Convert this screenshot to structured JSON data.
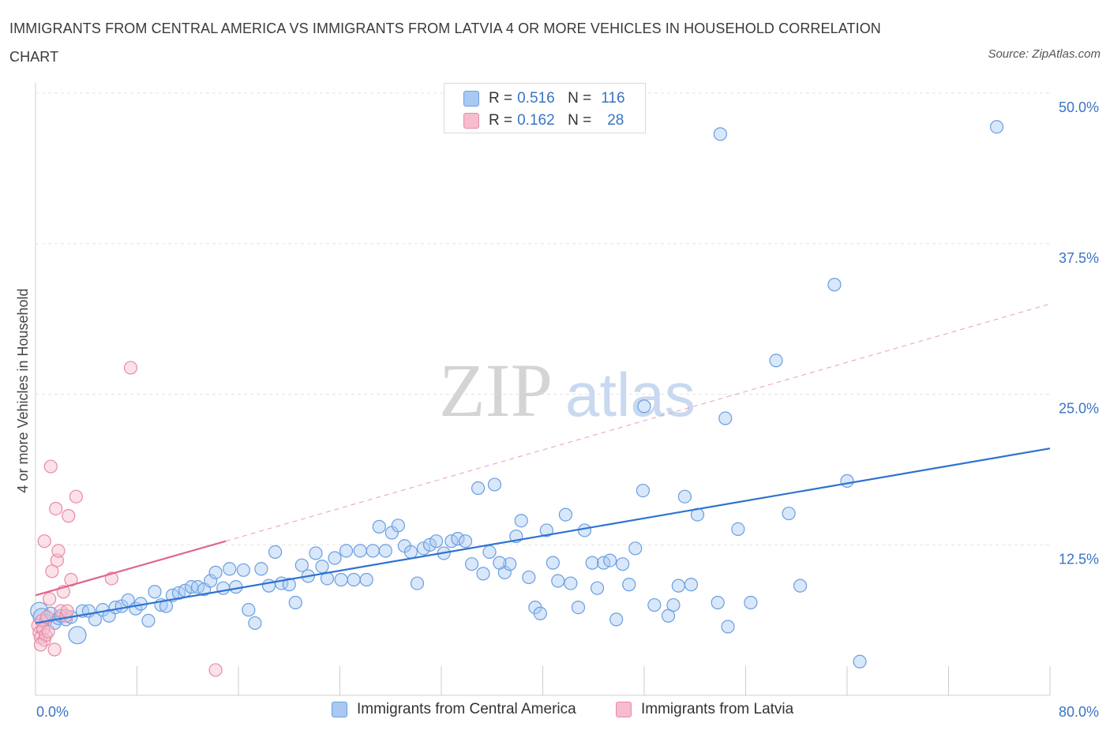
{
  "title": "IMMIGRANTS FROM CENTRAL AMERICA VS IMMIGRANTS FROM LATVIA 4 OR MORE VEHICLES IN HOUSEHOLD CORRELATION CHART",
  "source": "Source: ZipAtlas.com",
  "watermark": {
    "zip": "ZIP",
    "atlas": "atlas"
  },
  "legend": {
    "rows": [
      {
        "r_label": "R =",
        "r_value": "0.516",
        "n_label": "N =",
        "n_value": "116",
        "color": "#a9c9f2",
        "edge": "#6a9ee0"
      },
      {
        "r_label": "R =",
        "r_value": "0.162",
        "n_label": "N =",
        "n_value": "28",
        "color": "#f7bccd",
        "edge": "#e88aa6"
      }
    ]
  },
  "bottom_legend": [
    {
      "label": "Immigrants from Central America",
      "color": "#a9c9f2",
      "edge": "#6a9ee0"
    },
    {
      "label": "Immigrants from Latvia",
      "color": "#f7bccd",
      "edge": "#e88aa6"
    }
  ],
  "chart_data": {
    "type": "scatter",
    "title": "IMMIGRANTS FROM CENTRAL AMERICA VS IMMIGRANTS FROM LATVIA 4 OR MORE VEHICLES IN HOUSEHOLD CORRELATION CHART",
    "ylabel": "4 or more Vehicles in Household",
    "xlabel": "",
    "xlim": [
      0,
      80
    ],
    "ylim": [
      0,
      50
    ],
    "x_tick_labels": [
      "0.0%",
      "80.0%"
    ],
    "y_tick_labels": [
      "12.5%",
      "25.0%",
      "37.5%",
      "50.0%"
    ],
    "y_ticks": [
      12.5,
      25,
      37.5,
      50
    ],
    "grid": true,
    "legend_position": "top-center",
    "series": [
      {
        "name": "Immigrants from Central America",
        "color": "#6a9ee0",
        "fill": "#a9c9f2",
        "trend": {
          "x": [
            0,
            80
          ],
          "y": [
            6.0,
            20.5
          ],
          "style": "solid",
          "color": "#2f72d0"
        },
        "points": [
          [
            0.3,
            7.0
          ],
          [
            0.5,
            6.5
          ],
          [
            0.8,
            6.2
          ],
          [
            1.2,
            6.8
          ],
          [
            1.5,
            6.0
          ],
          [
            1.8,
            6.4
          ],
          [
            2.0,
            6.6
          ],
          [
            2.4,
            6.3
          ],
          [
            2.8,
            6.5
          ],
          [
            3.3,
            5.0
          ],
          [
            3.7,
            7.0
          ],
          [
            4.2,
            7.0
          ],
          [
            4.7,
            6.3
          ],
          [
            5.3,
            7.1
          ],
          [
            5.8,
            6.6
          ],
          [
            6.3,
            7.3
          ],
          [
            6.8,
            7.4
          ],
          [
            7.3,
            7.9
          ],
          [
            7.9,
            7.2
          ],
          [
            8.3,
            7.6
          ],
          [
            8.9,
            6.2
          ],
          [
            9.4,
            8.6
          ],
          [
            9.9,
            7.5
          ],
          [
            10.3,
            7.4
          ],
          [
            10.8,
            8.3
          ],
          [
            11.3,
            8.5
          ],
          [
            11.8,
            8.7
          ],
          [
            12.3,
            9.0
          ],
          [
            12.8,
            9.0
          ],
          [
            13.3,
            8.8
          ],
          [
            13.8,
            9.5
          ],
          [
            14.2,
            10.2
          ],
          [
            14.8,
            8.9
          ],
          [
            15.3,
            10.5
          ],
          [
            15.8,
            9.0
          ],
          [
            16.4,
            10.4
          ],
          [
            16.8,
            7.1
          ],
          [
            17.3,
            6.0
          ],
          [
            17.8,
            10.5
          ],
          [
            18.4,
            9.1
          ],
          [
            18.9,
            11.9
          ],
          [
            19.4,
            9.3
          ],
          [
            20.0,
            9.2
          ],
          [
            20.5,
            7.7
          ],
          [
            21.0,
            10.8
          ],
          [
            21.5,
            9.9
          ],
          [
            22.1,
            11.8
          ],
          [
            22.6,
            10.7
          ],
          [
            23.0,
            9.7
          ],
          [
            23.6,
            11.4
          ],
          [
            24.1,
            9.6
          ],
          [
            24.5,
            12.0
          ],
          [
            25.1,
            9.6
          ],
          [
            25.6,
            12.0
          ],
          [
            26.1,
            9.6
          ],
          [
            26.6,
            12.0
          ],
          [
            27.1,
            14.0
          ],
          [
            27.6,
            12.0
          ],
          [
            28.1,
            13.5
          ],
          [
            28.6,
            14.1
          ],
          [
            29.1,
            12.4
          ],
          [
            29.6,
            11.9
          ],
          [
            30.1,
            9.3
          ],
          [
            30.6,
            12.2
          ],
          [
            31.1,
            12.5
          ],
          [
            31.6,
            12.8
          ],
          [
            32.2,
            11.8
          ],
          [
            32.8,
            12.8
          ],
          [
            33.3,
            13.0
          ],
          [
            33.9,
            12.8
          ],
          [
            34.4,
            10.9
          ],
          [
            34.9,
            17.2
          ],
          [
            35.3,
            10.1
          ],
          [
            35.8,
            11.9
          ],
          [
            36.2,
            17.5
          ],
          [
            37.0,
            10.2
          ],
          [
            37.4,
            10.9
          ],
          [
            37.9,
            13.2
          ],
          [
            38.3,
            14.5
          ],
          [
            38.9,
            9.8
          ],
          [
            39.4,
            7.3
          ],
          [
            39.8,
            6.8
          ],
          [
            40.3,
            13.7
          ],
          [
            40.8,
            11.0
          ],
          [
            41.2,
            9.5
          ],
          [
            41.8,
            15.0
          ],
          [
            42.2,
            9.3
          ],
          [
            42.8,
            7.3
          ],
          [
            43.3,
            13.7
          ],
          [
            43.9,
            11.0
          ],
          [
            44.3,
            8.9
          ],
          [
            44.8,
            11.0
          ],
          [
            45.3,
            11.2
          ],
          [
            45.8,
            6.3
          ],
          [
            46.3,
            10.9
          ],
          [
            46.8,
            9.2
          ],
          [
            47.3,
            12.2
          ],
          [
            47.9,
            17.0
          ],
          [
            48.8,
            7.5
          ],
          [
            49.9,
            6.6
          ],
          [
            50.3,
            7.5
          ],
          [
            50.7,
            9.1
          ],
          [
            51.2,
            16.5
          ],
          [
            51.7,
            9.2
          ],
          [
            52.2,
            15.0
          ],
          [
            53.8,
            7.7
          ],
          [
            54.0,
            46.6
          ],
          [
            54.4,
            23.0
          ],
          [
            54.6,
            5.7
          ],
          [
            55.4,
            13.8
          ],
          [
            56.4,
            7.7
          ],
          [
            58.4,
            27.8
          ],
          [
            59.4,
            15.1
          ],
          [
            60.3,
            9.1
          ],
          [
            63.0,
            34.1
          ],
          [
            64.0,
            17.8
          ],
          [
            65.0,
            2.8
          ],
          [
            75.8,
            47.2
          ],
          [
            48.0,
            24.0
          ],
          [
            36.6,
            11.0
          ]
        ]
      },
      {
        "name": "Immigrants from Latvia",
        "color": "#e88aa6",
        "fill": "#f7bccd",
        "trend": {
          "x": [
            0,
            15
          ],
          "y": [
            8.3,
            12.8
          ],
          "style": "solid",
          "color": "#e0658d",
          "dashed_extension": {
            "x": [
              15,
              80
            ],
            "y": [
              12.8,
              32.5
            ]
          }
        },
        "points": [
          [
            0.2,
            5.8
          ],
          [
            0.3,
            5.2
          ],
          [
            0.4,
            4.8
          ],
          [
            0.5,
            6.2
          ],
          [
            0.6,
            5.5
          ],
          [
            0.7,
            4.6
          ],
          [
            0.8,
            5.0
          ],
          [
            0.9,
            6.5
          ],
          [
            1.0,
            5.3
          ],
          [
            1.1,
            8.0
          ],
          [
            1.2,
            19.0
          ],
          [
            1.3,
            10.3
          ],
          [
            1.5,
            3.8
          ],
          [
            1.6,
            15.5
          ],
          [
            1.7,
            11.2
          ],
          [
            1.8,
            12.0
          ],
          [
            2.0,
            7.0
          ],
          [
            2.2,
            8.6
          ],
          [
            2.4,
            6.6
          ],
          [
            2.5,
            7.0
          ],
          [
            2.6,
            14.9
          ],
          [
            2.8,
            9.6
          ],
          [
            3.2,
            16.5
          ],
          [
            0.7,
            12.8
          ],
          [
            0.4,
            4.2
          ],
          [
            6.0,
            9.7
          ],
          [
            7.5,
            27.2
          ],
          [
            14.2,
            2.1
          ]
        ]
      }
    ]
  }
}
